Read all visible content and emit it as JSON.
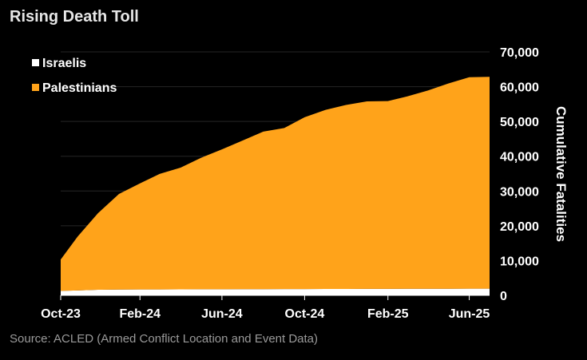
{
  "title": "Rising Death Toll",
  "source": "Source: ACLED (Armed Conflict Location and Event Data)",
  "colors": {
    "israelis": "#ffffff",
    "palestinians": "#ffa31a",
    "background": "#000000",
    "grid": "#262626"
  },
  "chart_data": {
    "type": "area",
    "stacked": true,
    "x_ticks": [
      "Oct-23",
      "Feb-24",
      "Jun-24",
      "Oct-24",
      "Feb-25",
      "Jun-25"
    ],
    "x": [
      "2023-10-07",
      "2023-11-01",
      "2023-12-01",
      "2024-01-01",
      "2024-02-01",
      "2024-03-01",
      "2024-04-01",
      "2024-05-01",
      "2024-06-01",
      "2024-07-01",
      "2024-08-01",
      "2024-09-01",
      "2024-10-01",
      "2024-11-01",
      "2024-12-01",
      "2025-01-01",
      "2025-02-01",
      "2025-03-01",
      "2025-04-01",
      "2025-05-01",
      "2025-06-01",
      "2025-07-01"
    ],
    "series": [
      {
        "name": "Israelis",
        "values": [
          1300,
          1400,
          1600,
          1650,
          1680,
          1700,
          1720,
          1740,
          1760,
          1780,
          1790,
          1800,
          1820,
          1840,
          1850,
          1860,
          1870,
          1880,
          1890,
          1900,
          1910,
          1920
        ]
      },
      {
        "name": "Palestinians",
        "values": [
          9000,
          15500,
          22000,
          27500,
          30500,
          33200,
          35000,
          37800,
          40200,
          42700,
          45300,
          46300,
          49400,
          51500,
          52900,
          53900,
          54000,
          55300,
          57000,
          59000,
          60800,
          60900
        ]
      }
    ],
    "ylabel": "Cumulative Fatalities",
    "ylim": [
      0,
      70000
    ],
    "y_ticks": [
      "0",
      "10,000",
      "20,000",
      "30,000",
      "40,000",
      "50,000",
      "60,000",
      "70,000"
    ],
    "y_tick_values": [
      0,
      10000,
      20000,
      30000,
      40000,
      50000,
      60000,
      70000
    ],
    "y_axis_side": "right",
    "grid": true,
    "legend_position": "top-left"
  }
}
